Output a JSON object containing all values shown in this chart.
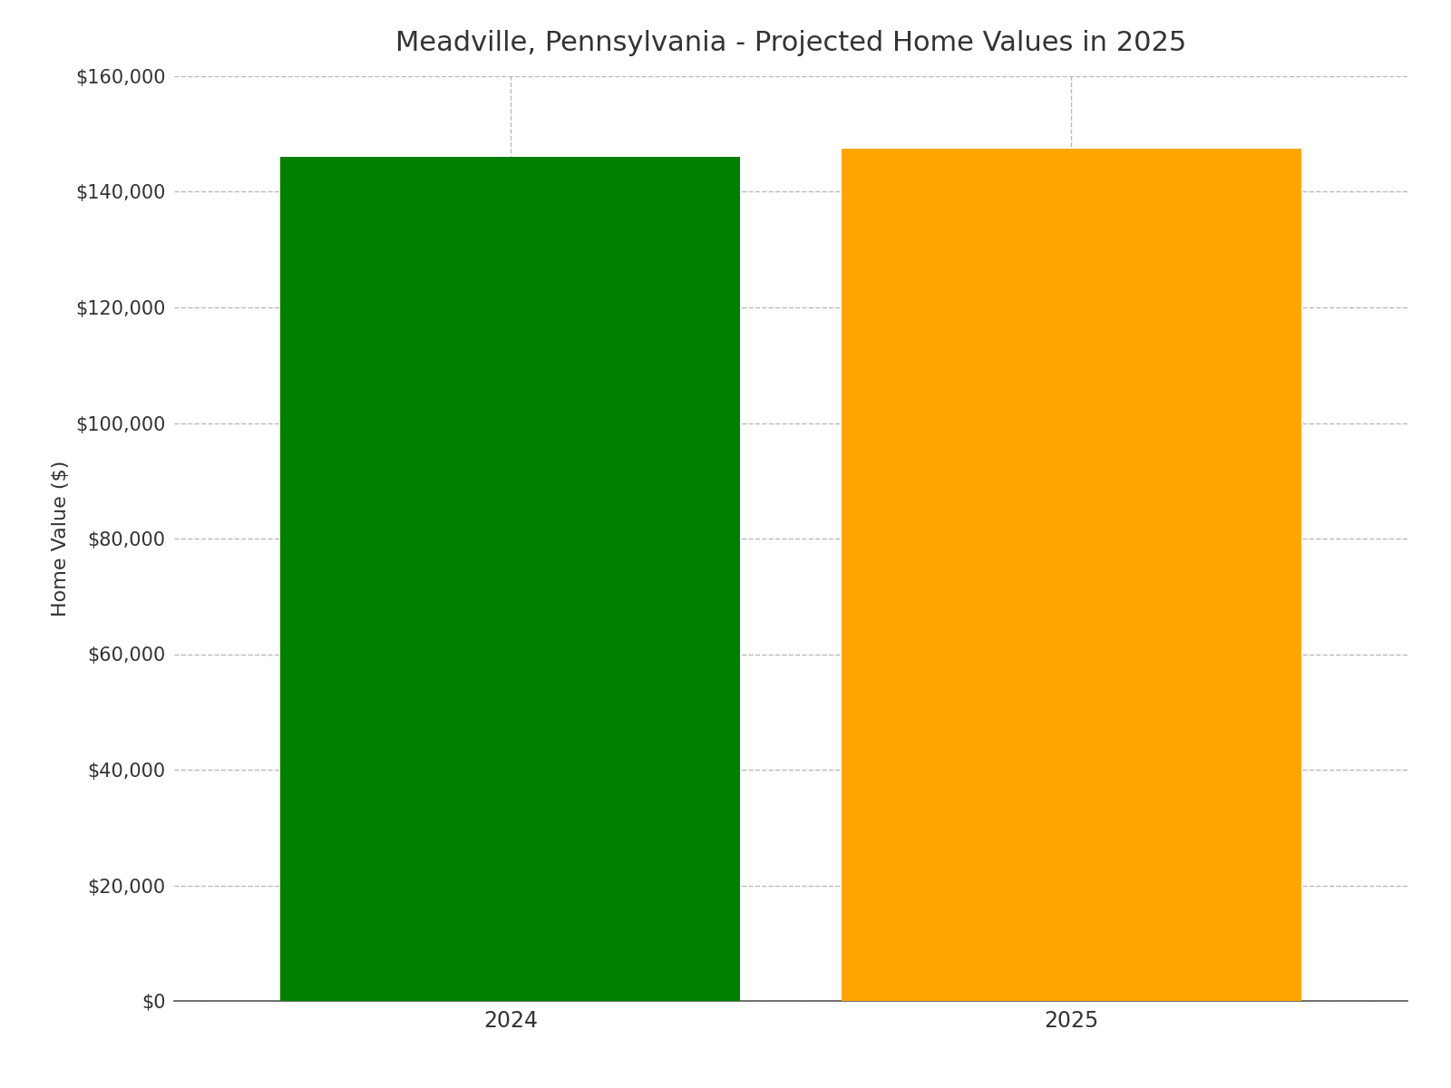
{
  "title": "Meadville, Pennsylvania - Projected Home Values in 2025",
  "categories": [
    "2024",
    "2025"
  ],
  "values": [
    146000,
    147500
  ],
  "bar_colors": [
    "#008000",
    "#FFA500"
  ],
  "ylabel": "Home Value ($)",
  "ylim": [
    0,
    160000
  ],
  "yticks": [
    0,
    20000,
    40000,
    60000,
    80000,
    100000,
    120000,
    140000,
    160000
  ],
  "ytick_labels": [
    "$0",
    "$20,000",
    "$40,000",
    "$60,000",
    "$80,000",
    "$100,000",
    "$120,000",
    "$140,000",
    "$160,000"
  ],
  "title_fontsize": 22,
  "axis_label_fontsize": 16,
  "tick_fontsize": 15,
  "background_color": "#ffffff",
  "grid_color": "#bbbbbb",
  "bar_width": 0.82,
  "xlim": [
    -0.6,
    1.6
  ]
}
